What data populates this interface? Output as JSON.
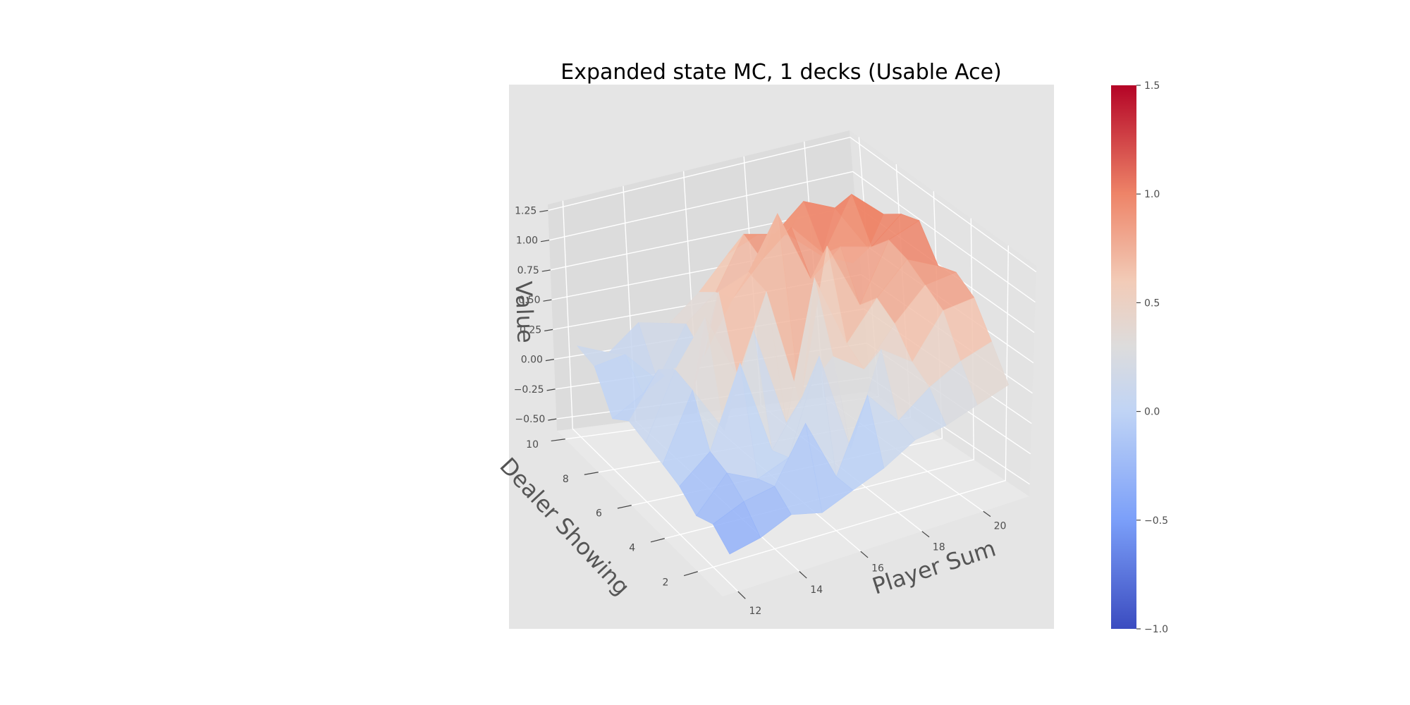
{
  "figure": {
    "title": "Expanded state MC, 1 decks (Usable Ace)"
  },
  "chart_data": {
    "type": "surface3d",
    "title": "Expanded state MC, 1 decks (Usable Ace)",
    "xlabel": "Player Sum",
    "ylabel": "Dealer Showing",
    "zlabel": "Value",
    "x": [
      12,
      13,
      14,
      15,
      16,
      17,
      18,
      19,
      20,
      21
    ],
    "y": [
      1,
      2,
      3,
      4,
      5,
      6,
      7,
      8,
      9,
      10
    ],
    "xlim": [
      11.5,
      21.5
    ],
    "ylim": [
      0.5,
      10.5
    ],
    "zlim": [
      -0.6,
      1.3
    ],
    "x_ticks": [
      12,
      14,
      16,
      18,
      20
    ],
    "y_ticks": [
      2,
      4,
      6,
      8,
      10
    ],
    "z_ticks": [
      -0.5,
      -0.25,
      0.0,
      0.25,
      0.5,
      0.75,
      1.0,
      1.25
    ],
    "z_tick_labels": [
      "−0.50",
      "−0.25",
      "0.00",
      "0.25",
      "0.50",
      "0.75",
      "1.00",
      "1.25"
    ],
    "z": [
      [
        -0.4,
        -0.35,
        -0.25,
        -0.3,
        -0.2,
        -0.1,
        0.05,
        0.1,
        0.2,
        0.3
      ],
      [
        -0.3,
        -0.2,
        -0.15,
        0.25,
        -0.2,
        0.35,
        0.1,
        0.3,
        0.45,
        0.55
      ],
      [
        -0.35,
        -0.1,
        -0.2,
        -0.1,
        0.6,
        -0.15,
        0.55,
        0.4,
        0.75,
        0.8
      ],
      [
        -0.25,
        -0.05,
        0.55,
        -0.15,
        0.2,
        0.45,
        0.3,
        0.6,
        0.85,
        0.9
      ],
      [
        -0.2,
        0.3,
        -0.05,
        0.65,
        -0.1,
        0.95,
        0.4,
        0.7,
        0.95,
        0.85
      ],
      [
        -0.15,
        0.35,
        0.7,
        0.2,
        0.8,
        -0.1,
        1.05,
        0.55,
        1.0,
        1.1
      ],
      [
        -0.1,
        0.25,
        -0.05,
        0.75,
        0.85,
        1.25,
        0.7,
        0.9,
        0.85,
        1.05
      ],
      [
        -0.2,
        -0.05,
        0.1,
        0.15,
        0.55,
        0.8,
        1.0,
        0.75,
        1.15,
        0.95
      ],
      [
        0.1,
        0.15,
        -0.1,
        0.3,
        0.5,
        0.9,
        0.85,
        1.05,
        0.95,
        0.6
      ],
      [
        0.15,
        0.05,
        0.25,
        0.2,
        0.4,
        0.65,
        0.75,
        0.7,
        0.5,
        0.4
      ]
    ],
    "colormap": "coolwarm",
    "colorbar": {
      "range": [
        -1.0,
        1.5
      ],
      "ticks": [
        -1.0,
        -0.5,
        0.0,
        0.5,
        1.0,
        1.5
      ],
      "tick_labels": [
        "−1.0",
        "−0.5",
        "0.0",
        "0.5",
        "1.0",
        "1.5"
      ]
    },
    "colors": {
      "panel_background": "#e5e5e5",
      "pane_xz": "#dcdcdc",
      "pane_yz": "#e3e3e3",
      "floor": "#e9e9e9",
      "grid": "#ffffff",
      "tick_text": "#4d4d4d",
      "axis_label": "#555555",
      "title": "#000000"
    },
    "grid": true
  }
}
